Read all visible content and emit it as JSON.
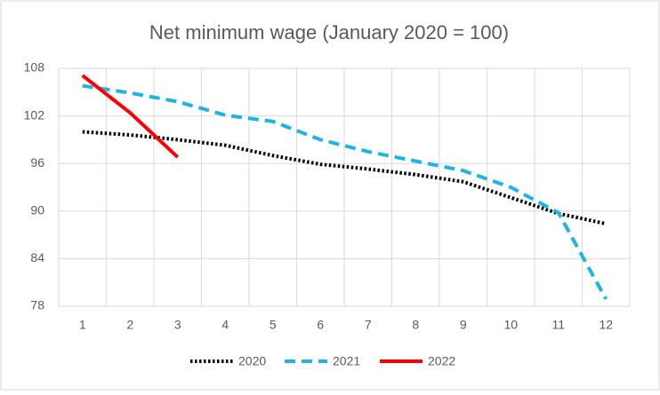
{
  "chart_data": {
    "type": "line",
    "title": "Net minimum wage (January 2020 = 100)",
    "categories": [
      "1",
      "2",
      "3",
      "4",
      "5",
      "6",
      "7",
      "8",
      "9",
      "10",
      "11",
      "12"
    ],
    "series": [
      {
        "name": "2020",
        "color": "#000000",
        "dash": "dotted",
        "values": [
          100,
          99.6,
          99.0,
          98.3,
          97.0,
          95.9,
          95.3,
          94.6,
          93.7,
          91.7,
          89.7,
          88.4
        ]
      },
      {
        "name": "2021",
        "color": "#1fb4e6",
        "dash": "dashed",
        "values": [
          105.8,
          104.9,
          103.8,
          102.1,
          101.3,
          99.0,
          97.5,
          96.3,
          95.1,
          93.0,
          89.8,
          78.9
        ]
      },
      {
        "name": "2022",
        "color": "#ff0000",
        "dash": "solid",
        "values": [
          107.1,
          102.4,
          96.8,
          null,
          null,
          null,
          null,
          null,
          null,
          null,
          null,
          null
        ]
      }
    ],
    "ylim": [
      78,
      108
    ],
    "yticks": [
      78,
      84,
      90,
      96,
      102,
      108
    ],
    "grid": true,
    "legend": "bottom"
  }
}
